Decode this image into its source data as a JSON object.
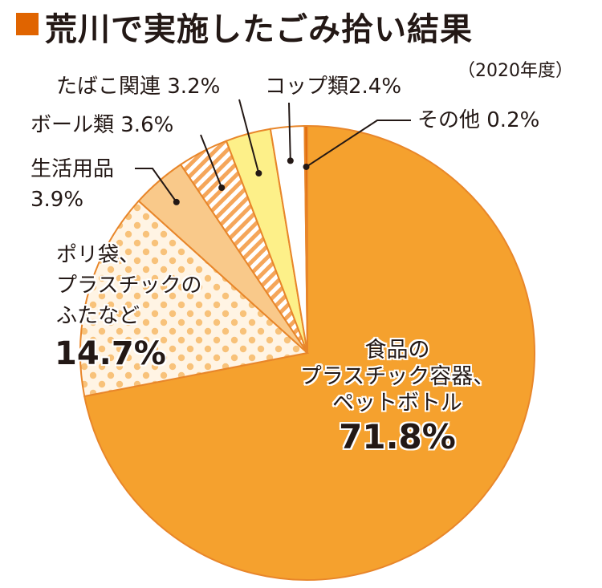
{
  "title": "荒川で実施したごみ拾い結果",
  "subtitle": "（2020年度）",
  "colors": {
    "title_square": "#e06400",
    "food_plastic": "#f5a12e",
    "poly_bag": "#fce7c8",
    "poly_dots": "#f8c27a",
    "daily_goods": "#f9c98a",
    "ball": "#f5a65a",
    "cigarette": "#fdf089",
    "cup": "#ffffff",
    "other": "#e06400",
    "edge": "#e8862a"
  },
  "chart_data": {
    "type": "pie",
    "title": "荒川で実施したごみ拾い結果",
    "subtitle": "（2020年度）",
    "slices": [
      {
        "label": "食品のプラスチック容器、ペットボトル",
        "value": 71.8,
        "pattern": "solid"
      },
      {
        "label": "ポリ袋、プラスチックのふたなど",
        "value": 14.7,
        "pattern": "dots"
      },
      {
        "label": "生活用品",
        "value": 3.9,
        "pattern": "solid"
      },
      {
        "label": "ボール類",
        "value": 3.6,
        "pattern": "stripes"
      },
      {
        "label": "たばこ関連",
        "value": 3.2,
        "pattern": "solid"
      },
      {
        "label": "コップ類",
        "value": 2.4,
        "pattern": "solid"
      },
      {
        "label": "その他",
        "value": 0.2,
        "pattern": "solid"
      }
    ]
  },
  "labels": {
    "food_line1": "食品の",
    "food_line2": "プラスチック容器、",
    "food_line3": "ペットボトル",
    "food_value": "71.8%",
    "poly_line1": "ポリ袋、",
    "poly_line2": "プラスチックの",
    "poly_line3": "ふたなど",
    "poly_value": "14.7%",
    "daily_line1": "生活用品",
    "daily_value": "3.9%",
    "ball_text": "ボール類 3.6%",
    "cig_text": "たばこ関連 3.2%",
    "cup_text": "コップ類2.4%",
    "other_text": "その他 0.2%"
  }
}
